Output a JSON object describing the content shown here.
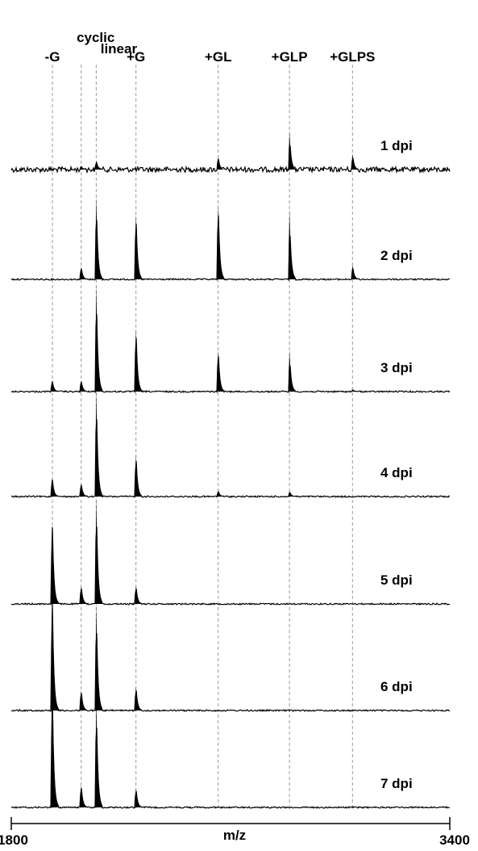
{
  "chart_data": {
    "type": "line",
    "title": "",
    "xlabel": "m/z",
    "xlim": [
      1800,
      3400
    ],
    "x_tick_labels": [
      "1800",
      "3400"
    ],
    "peak_labels": [
      {
        "label": "-G",
        "mz": 1950
      },
      {
        "label": "cyclic",
        "mz": 2055
      },
      {
        "label": "linear",
        "mz": 2110
      },
      {
        "label": "+G",
        "mz": 2255
      },
      {
        "label": "+GL",
        "mz": 2555
      },
      {
        "label": "+GLP",
        "mz": 2815
      },
      {
        "label": "+GLPS",
        "mz": 3045
      }
    ],
    "series": [
      {
        "name": "1 dpi",
        "values": [
          0.0,
          0.03,
          0.08,
          0.0,
          0.11,
          0.34,
          0.14
        ]
      },
      {
        "name": "2 dpi",
        "values": [
          0.0,
          0.11,
          0.73,
          0.58,
          0.67,
          0.62,
          0.13
        ]
      },
      {
        "name": "3 dpi",
        "values": [
          0.09,
          0.1,
          0.95,
          0.56,
          0.37,
          0.37,
          0.02
        ]
      },
      {
        "name": "4 dpi",
        "values": [
          0.15,
          0.12,
          0.95,
          0.37,
          0.05,
          0.05,
          0.0
        ]
      },
      {
        "name": "5 dpi",
        "values": [
          0.68,
          0.16,
          0.95,
          0.16,
          0.0,
          0.0,
          0.0
        ]
      },
      {
        "name": "6 dpi",
        "values": [
          0.95,
          0.18,
          0.95,
          0.21,
          0.0,
          0.0,
          0.0
        ]
      },
      {
        "name": "7 dpi",
        "values": [
          0.98,
          0.2,
          0.98,
          0.17,
          0.0,
          0.0,
          0.0
        ]
      }
    ],
    "y_axis_shown": false,
    "grid": false,
    "line_color": "#000000",
    "guide_line_color": "#9a9a9a",
    "guide_line_style": "dashed"
  }
}
